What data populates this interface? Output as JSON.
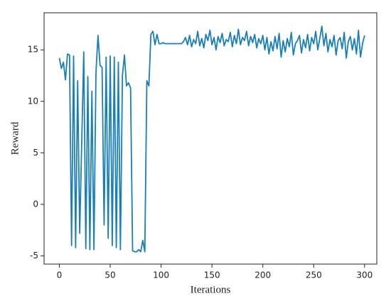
{
  "chart_data": {
    "type": "line",
    "xlabel": "Iterations",
    "ylabel": "Reward",
    "x": [
      0,
      2,
      4,
      6,
      8,
      10,
      12,
      14,
      16,
      18,
      20,
      22,
      24,
      26,
      28,
      30,
      32,
      34,
      36,
      38,
      40,
      42,
      44,
      46,
      48,
      50,
      52,
      54,
      56,
      58,
      60,
      62,
      64,
      66,
      68,
      70,
      72,
      74,
      76,
      78,
      80,
      82,
      84,
      86,
      88,
      90,
      92,
      94,
      96,
      98,
      100,
      102,
      104,
      106,
      108,
      110,
      112,
      114,
      116,
      118,
      120,
      122,
      124,
      126,
      128,
      130,
      132,
      134,
      136,
      138,
      140,
      142,
      144,
      146,
      148,
      150,
      152,
      154,
      156,
      158,
      160,
      162,
      164,
      166,
      168,
      170,
      172,
      174,
      176,
      178,
      180,
      182,
      184,
      186,
      188,
      190,
      192,
      194,
      196,
      198,
      200,
      202,
      204,
      206,
      208,
      210,
      212,
      214,
      216,
      218,
      220,
      222,
      224,
      226,
      228,
      230,
      232,
      234,
      236,
      238,
      240,
      242,
      244,
      246,
      248,
      250,
      252,
      254,
      256,
      258,
      260,
      262,
      264,
      266,
      268,
      270,
      272,
      274,
      276,
      278,
      280,
      282,
      284,
      286,
      288,
      290,
      292,
      294,
      296,
      298,
      300
    ],
    "series": [
      {
        "color": "#1a7fb5",
        "values": [
          14.2,
          13.2,
          13.8,
          12.1,
          14.6,
          14.5,
          -4,
          14.4,
          -4.2,
          12,
          -2.8,
          6,
          14.8,
          -4.3,
          12.4,
          -4.4,
          11,
          -4.4,
          12.8,
          16.4,
          13.5,
          13.3,
          -2,
          14.3,
          -3.3,
          14.4,
          -4,
          14.3,
          -4.2,
          13.8,
          -4.4,
          12.5,
          14.5,
          11.5,
          11.8,
          11.3,
          -4.5,
          -4.6,
          -4.6,
          -4.4,
          -4.6,
          -3.5,
          -4.6,
          12,
          11.5,
          16.5,
          16.8,
          15.5,
          16.5,
          15.6,
          15.6,
          15.7,
          15.6,
          15.6,
          15.6,
          15.6,
          15.6,
          15.6,
          15.6,
          15.6,
          15.6,
          15.8,
          16.2,
          15.5,
          16.4,
          15.3,
          16.0,
          15.6,
          16.8,
          15.4,
          16.1,
          15.2,
          16.5,
          15.9,
          16.9,
          15.5,
          16.2,
          15.0,
          16.3,
          15.7,
          16.6,
          15.4,
          16.0,
          15.8,
          16.7,
          15.3,
          16.4,
          15.6,
          17.0,
          15.5,
          16.2,
          15.9,
          16.8,
          15.4,
          16.3,
          15.7,
          16.5,
          15.2,
          16.1,
          15.6,
          16.4,
          15.0,
          16.2,
          14.6,
          15.8,
          14.9,
          16.3,
          15.1,
          16.6,
          14.3,
          15.9,
          14.8,
          16.1,
          15.3,
          16.7,
          14.5,
          15.6,
          15.9,
          16.4,
          14.7,
          16.0,
          15.2,
          16.5,
          14.9,
          16.2,
          15.6,
          16.8,
          15.0,
          16.1,
          17.3,
          15.4,
          16.6,
          14.8,
          16.0,
          15.3,
          16.4,
          14.5,
          15.9,
          16.2,
          15.1,
          16.7,
          14.2,
          15.8,
          16.3,
          15.0,
          16.1,
          14.6,
          16.9,
          14.3,
          15.6,
          16.4
        ]
      }
    ],
    "xlim": [
      -15,
      312
    ],
    "xticks": [
      0,
      50,
      100,
      150,
      200,
      250,
      300
    ],
    "ylim": [
      -5.8,
      18.6
    ],
    "yticks": [
      -5,
      0,
      5,
      10,
      15
    ]
  }
}
